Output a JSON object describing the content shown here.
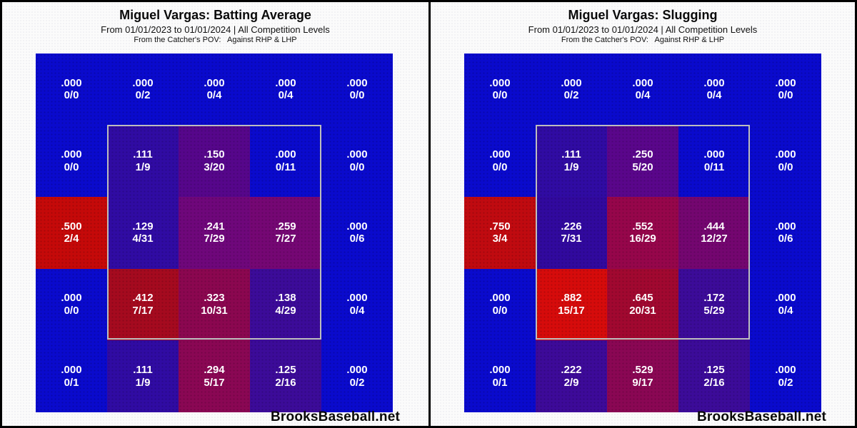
{
  "source_label": "BrooksBaseball.net",
  "colors": {
    "zero_blue": "#0A0ACD",
    "background": "#FBFBFB",
    "border_black": "#000000",
    "strike_zone_border": "#BDBDBD",
    "cell_text": "#FFFFFF"
  },
  "panels": [
    {
      "title": "Miguel Vargas: Batting Average",
      "subtitle": "From 01/01/2023 to 01/01/2024 | All Competition Levels",
      "pov_line": "From the Catcher's POV:   Against RHP & LHP",
      "footer": "BrooksBaseball.net",
      "grid": {
        "cells": [
          [
            {
              "value": ".000",
              "count": "0/0",
              "color": "#0A0ACD"
            },
            {
              "value": ".000",
              "count": "0/2",
              "color": "#0A0ACD"
            },
            {
              "value": ".000",
              "count": "0/4",
              "color": "#0A0ACD"
            },
            {
              "value": ".000",
              "count": "0/4",
              "color": "#0A0ACD"
            },
            {
              "value": ".000",
              "count": "0/0",
              "color": "#0A0ACD"
            }
          ],
          [
            {
              "value": ".000",
              "count": "0/0",
              "color": "#0A0ACD"
            },
            {
              "value": ".111",
              "count": "1/9",
              "color": "#300BA3"
            },
            {
              "value": ".150",
              "count": "3/20",
              "color": "#56068B"
            },
            {
              "value": ".000",
              "count": "0/11",
              "color": "#0A0ACD"
            },
            {
              "value": ".000",
              "count": "0/0",
              "color": "#0A0ACD"
            }
          ],
          [
            {
              "value": ".500",
              "count": "2/4",
              "color": "#C50909"
            },
            {
              "value": ".129",
              "count": "4/31",
              "color": "#300BA3"
            },
            {
              "value": ".241",
              "count": "7/29",
              "color": "#6F077B"
            },
            {
              "value": ".259",
              "count": "7/27",
              "color": "#750774"
            },
            {
              "value": ".000",
              "count": "0/6",
              "color": "#0A0ACD"
            }
          ],
          [
            {
              "value": ".000",
              "count": "0/0",
              "color": "#0A0ACD"
            },
            {
              "value": ".412",
              "count": "7/17",
              "color": "#A50A1F"
            },
            {
              "value": ".323",
              "count": "10/31",
              "color": "#8B0750"
            },
            {
              "value": ".138",
              "count": "4/29",
              "color": "#3C0B99"
            },
            {
              "value": ".000",
              "count": "0/4",
              "color": "#0A0ACD"
            }
          ],
          [
            {
              "value": ".000",
              "count": "0/1",
              "color": "#0A0ACD"
            },
            {
              "value": ".111",
              "count": "1/9",
              "color": "#300BA3"
            },
            {
              "value": ".294",
              "count": "5/17",
              "color": "#8A0754"
            },
            {
              "value": ".125",
              "count": "2/16",
              "color": "#3C0B99"
            },
            {
              "value": ".000",
              "count": "0/2",
              "color": "#0A0ACD"
            }
          ]
        ]
      }
    },
    {
      "title": "Miguel Vargas: Slugging",
      "subtitle": "From 01/01/2023 to 01/01/2024 | All Competition Levels",
      "pov_line": "From the Catcher's POV:   Against RHP & LHP",
      "footer": "BrooksBaseball.net",
      "grid": {
        "cells": [
          [
            {
              "value": ".000",
              "count": "0/0",
              "color": "#0A0ACD"
            },
            {
              "value": ".000",
              "count": "0/2",
              "color": "#0A0ACD"
            },
            {
              "value": ".000",
              "count": "0/4",
              "color": "#0A0ACD"
            },
            {
              "value": ".000",
              "count": "0/4",
              "color": "#0A0ACD"
            },
            {
              "value": ".000",
              "count": "0/0",
              "color": "#0A0ACD"
            }
          ],
          [
            {
              "value": ".000",
              "count": "0/0",
              "color": "#0A0ACD"
            },
            {
              "value": ".111",
              "count": "1/9",
              "color": "#300BA3"
            },
            {
              "value": ".250",
              "count": "5/20",
              "color": "#5A068B"
            },
            {
              "value": ".000",
              "count": "0/11",
              "color": "#0A0ACD"
            },
            {
              "value": ".000",
              "count": "0/0",
              "color": "#0A0ACD"
            }
          ],
          [
            {
              "value": ".750",
              "count": "3/4",
              "color": "#C00A10"
            },
            {
              "value": ".226",
              "count": "7/31",
              "color": "#31099E"
            },
            {
              "value": ".552",
              "count": "16/29",
              "color": "#96064B"
            },
            {
              "value": ".444",
              "count": "12/27",
              "color": "#740670"
            },
            {
              "value": ".000",
              "count": "0/6",
              "color": "#0A0ACD"
            }
          ],
          [
            {
              "value": ".000",
              "count": "0/0",
              "color": "#0A0ACD"
            },
            {
              "value": ".882",
              "count": "15/17",
              "color": "#D60B0B"
            },
            {
              "value": ".645",
              "count": "20/31",
              "color": "#A10830"
            },
            {
              "value": ".172",
              "count": "5/29",
              "color": "#3C0B99"
            },
            {
              "value": ".000",
              "count": "0/4",
              "color": "#0A0ACD"
            }
          ],
          [
            {
              "value": ".000",
              "count": "0/1",
              "color": "#0A0ACD"
            },
            {
              "value": ".222",
              "count": "2/9",
              "color": "#3D0A99"
            },
            {
              "value": ".529",
              "count": "9/17",
              "color": "#8A0754"
            },
            {
              "value": ".125",
              "count": "2/16",
              "color": "#3C0B99"
            },
            {
              "value": ".000",
              "count": "0/2",
              "color": "#0A0ACD"
            }
          ]
        ]
      }
    }
  ],
  "chart_data": [
    {
      "type": "heatmap",
      "title": "Miguel Vargas: Batting Average",
      "subtitle": "From 01/01/2023 to 01/01/2024 | All Competition Levels",
      "annotation": "From the Catcher's POV: Against RHP & LHP",
      "rows": 5,
      "cols": 5,
      "values": [
        [
          0.0,
          0.0,
          0.0,
          0.0,
          0.0
        ],
        [
          0.0,
          0.111,
          0.15,
          0.0,
          0.0
        ],
        [
          0.5,
          0.129,
          0.241,
          0.259,
          0.0
        ],
        [
          0.0,
          0.412,
          0.323,
          0.138,
          0.0
        ],
        [
          0.0,
          0.111,
          0.294,
          0.125,
          0.0
        ]
      ],
      "counts": [
        [
          "0/0",
          "0/2",
          "0/4",
          "0/4",
          "0/0"
        ],
        [
          "0/0",
          "1/9",
          "3/20",
          "0/11",
          "0/0"
        ],
        [
          "2/4",
          "4/31",
          "7/29",
          "7/27",
          "0/6"
        ],
        [
          "0/0",
          "7/17",
          "10/31",
          "4/29",
          "0/4"
        ],
        [
          "0/1",
          "1/9",
          "5/17",
          "2/16",
          "0/2"
        ]
      ],
      "strike_zone_cells": "rows 2-4, cols 2-4 (inner 3x3 outlined)",
      "colorscale": "blue (low/zero) to red (high)",
      "legend": "none",
      "source": "BrooksBaseball.net"
    },
    {
      "type": "heatmap",
      "title": "Miguel Vargas: Slugging",
      "subtitle": "From 01/01/2023 to 01/01/2024 | All Competition Levels",
      "annotation": "From the Catcher's POV: Against RHP & LHP",
      "rows": 5,
      "cols": 5,
      "values": [
        [
          0.0,
          0.0,
          0.0,
          0.0,
          0.0
        ],
        [
          0.0,
          0.111,
          0.25,
          0.0,
          0.0
        ],
        [
          0.75,
          0.226,
          0.552,
          0.444,
          0.0
        ],
        [
          0.0,
          0.882,
          0.645,
          0.172,
          0.0
        ],
        [
          0.0,
          0.222,
          0.529,
          0.125,
          0.0
        ]
      ],
      "counts": [
        [
          "0/0",
          "0/2",
          "0/4",
          "0/4",
          "0/0"
        ],
        [
          "0/0",
          "1/9",
          "5/20",
          "0/11",
          "0/0"
        ],
        [
          "3/4",
          "7/31",
          "16/29",
          "12/27",
          "0/6"
        ],
        [
          "0/0",
          "15/17",
          "20/31",
          "5/29",
          "0/4"
        ],
        [
          "0/1",
          "2/9",
          "9/17",
          "2/16",
          "0/2"
        ]
      ],
      "strike_zone_cells": "rows 2-4, cols 2-4 (inner 3x3 outlined)",
      "colorscale": "blue (low/zero) to red (high)",
      "legend": "none",
      "source": "BrooksBaseball.net"
    }
  ]
}
